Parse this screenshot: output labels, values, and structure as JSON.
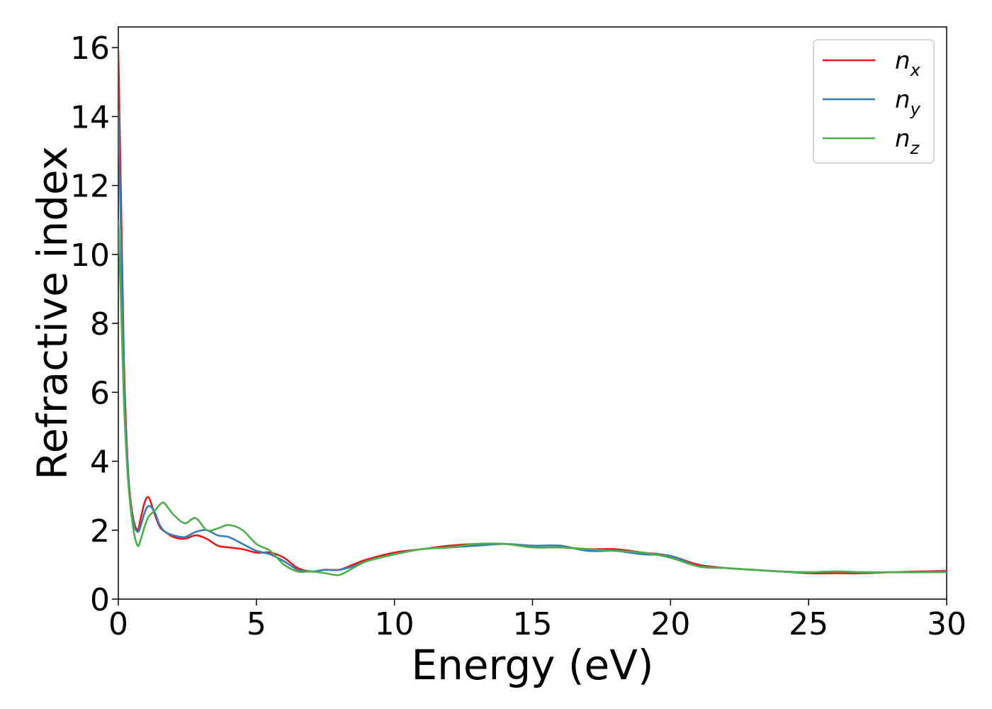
{
  "chart_data": {
    "type": "line",
    "title": "",
    "xlabel": "Energy (eV)",
    "ylabel": "Refractive index",
    "xlim": [
      0,
      30
    ],
    "ylim": [
      0,
      16.6
    ],
    "xticks": [
      0,
      5,
      10,
      15,
      20,
      25,
      30
    ],
    "yticks": [
      0,
      2,
      4,
      6,
      8,
      10,
      12,
      14,
      16
    ],
    "grid": false,
    "legend_position": "top-right",
    "series": [
      {
        "name": "n",
        "subscript": "x",
        "color": "#e41a1c",
        "x": [
          0,
          0.1,
          0.2,
          0.3,
          0.4,
          0.55,
          0.7,
          0.8,
          0.95,
          1.1,
          1.3,
          1.5,
          1.7,
          2.0,
          2.4,
          2.8,
          3.2,
          3.6,
          4.0,
          4.5,
          5.0,
          5.5,
          6.0,
          6.5,
          7.0,
          7.5,
          8.0,
          8.5,
          9.0,
          10.0,
          11.0,
          12.0,
          13.0,
          14.0,
          15.0,
          16.0,
          17.0,
          18.0,
          19.0,
          20.0,
          21.0,
          22.0,
          23.0,
          24.0,
          25.0,
          26.0,
          27.0,
          28.0,
          29.0,
          30.0
        ],
        "values": [
          15.9,
          11.5,
          7.0,
          4.6,
          3.2,
          2.3,
          2.0,
          2.3,
          2.8,
          2.95,
          2.5,
          2.1,
          1.95,
          1.8,
          1.75,
          1.85,
          1.75,
          1.55,
          1.5,
          1.45,
          1.35,
          1.35,
          1.2,
          0.9,
          0.8,
          0.85,
          0.85,
          1.0,
          1.15,
          1.35,
          1.45,
          1.55,
          1.6,
          1.6,
          1.5,
          1.5,
          1.45,
          1.45,
          1.35,
          1.25,
          1.0,
          0.9,
          0.85,
          0.8,
          0.75,
          0.75,
          0.75,
          0.78,
          0.8,
          0.82
        ]
      },
      {
        "name": "n",
        "subscript": "y",
        "color": "#377eb8",
        "x": [
          0,
          0.1,
          0.2,
          0.3,
          0.4,
          0.55,
          0.7,
          0.8,
          0.95,
          1.1,
          1.3,
          1.5,
          1.7,
          2.0,
          2.4,
          2.8,
          3.2,
          3.6,
          4.0,
          4.5,
          5.0,
          5.5,
          6.0,
          6.5,
          7.0,
          7.5,
          8.0,
          8.5,
          9.0,
          10.0,
          11.0,
          12.0,
          13.0,
          14.0,
          15.0,
          16.0,
          17.0,
          18.0,
          19.0,
          20.0,
          21.0,
          22.0,
          23.0,
          24.0,
          25.0,
          26.0,
          27.0,
          28.0,
          29.0,
          30.0
        ],
        "values": [
          14.2,
          10.5,
          6.5,
          4.4,
          3.1,
          2.2,
          1.95,
          2.1,
          2.5,
          2.7,
          2.55,
          2.15,
          1.95,
          1.85,
          1.8,
          1.95,
          2.0,
          1.85,
          1.8,
          1.6,
          1.4,
          1.3,
          1.1,
          0.85,
          0.8,
          0.85,
          0.85,
          0.95,
          1.1,
          1.3,
          1.45,
          1.5,
          1.55,
          1.6,
          1.55,
          1.55,
          1.4,
          1.4,
          1.3,
          1.25,
          0.95,
          0.9,
          0.85,
          0.8,
          0.78,
          0.8,
          0.78,
          0.78,
          0.78,
          0.8
        ]
      },
      {
        "name": "n",
        "subscript": "z",
        "color": "#4daf4a",
        "x": [
          0,
          0.1,
          0.2,
          0.3,
          0.4,
          0.55,
          0.7,
          0.8,
          0.95,
          1.1,
          1.3,
          1.6,
          1.8,
          2.0,
          2.4,
          2.8,
          3.2,
          3.6,
          4.0,
          4.5,
          5.0,
          5.5,
          6.0,
          6.5,
          7.0,
          7.5,
          8.0,
          8.5,
          9.0,
          10.0,
          11.0,
          12.0,
          13.0,
          14.0,
          15.0,
          16.0,
          17.0,
          18.0,
          19.0,
          20.0,
          21.0,
          22.0,
          23.0,
          24.0,
          25.0,
          26.0,
          27.0,
          28.0,
          29.0,
          30.0
        ],
        "values": [
          11.0,
          8.5,
          5.8,
          4.1,
          3.0,
          2.0,
          1.55,
          1.7,
          2.1,
          2.4,
          2.55,
          2.8,
          2.65,
          2.45,
          2.2,
          2.35,
          2.0,
          2.05,
          2.15,
          2.0,
          1.6,
          1.4,
          1.0,
          0.8,
          0.8,
          0.75,
          0.7,
          0.9,
          1.1,
          1.3,
          1.45,
          1.5,
          1.6,
          1.6,
          1.5,
          1.5,
          1.45,
          1.4,
          1.35,
          1.2,
          0.95,
          0.9,
          0.85,
          0.8,
          0.78,
          0.8,
          0.78,
          0.78,
          0.78,
          0.78
        ]
      }
    ]
  }
}
